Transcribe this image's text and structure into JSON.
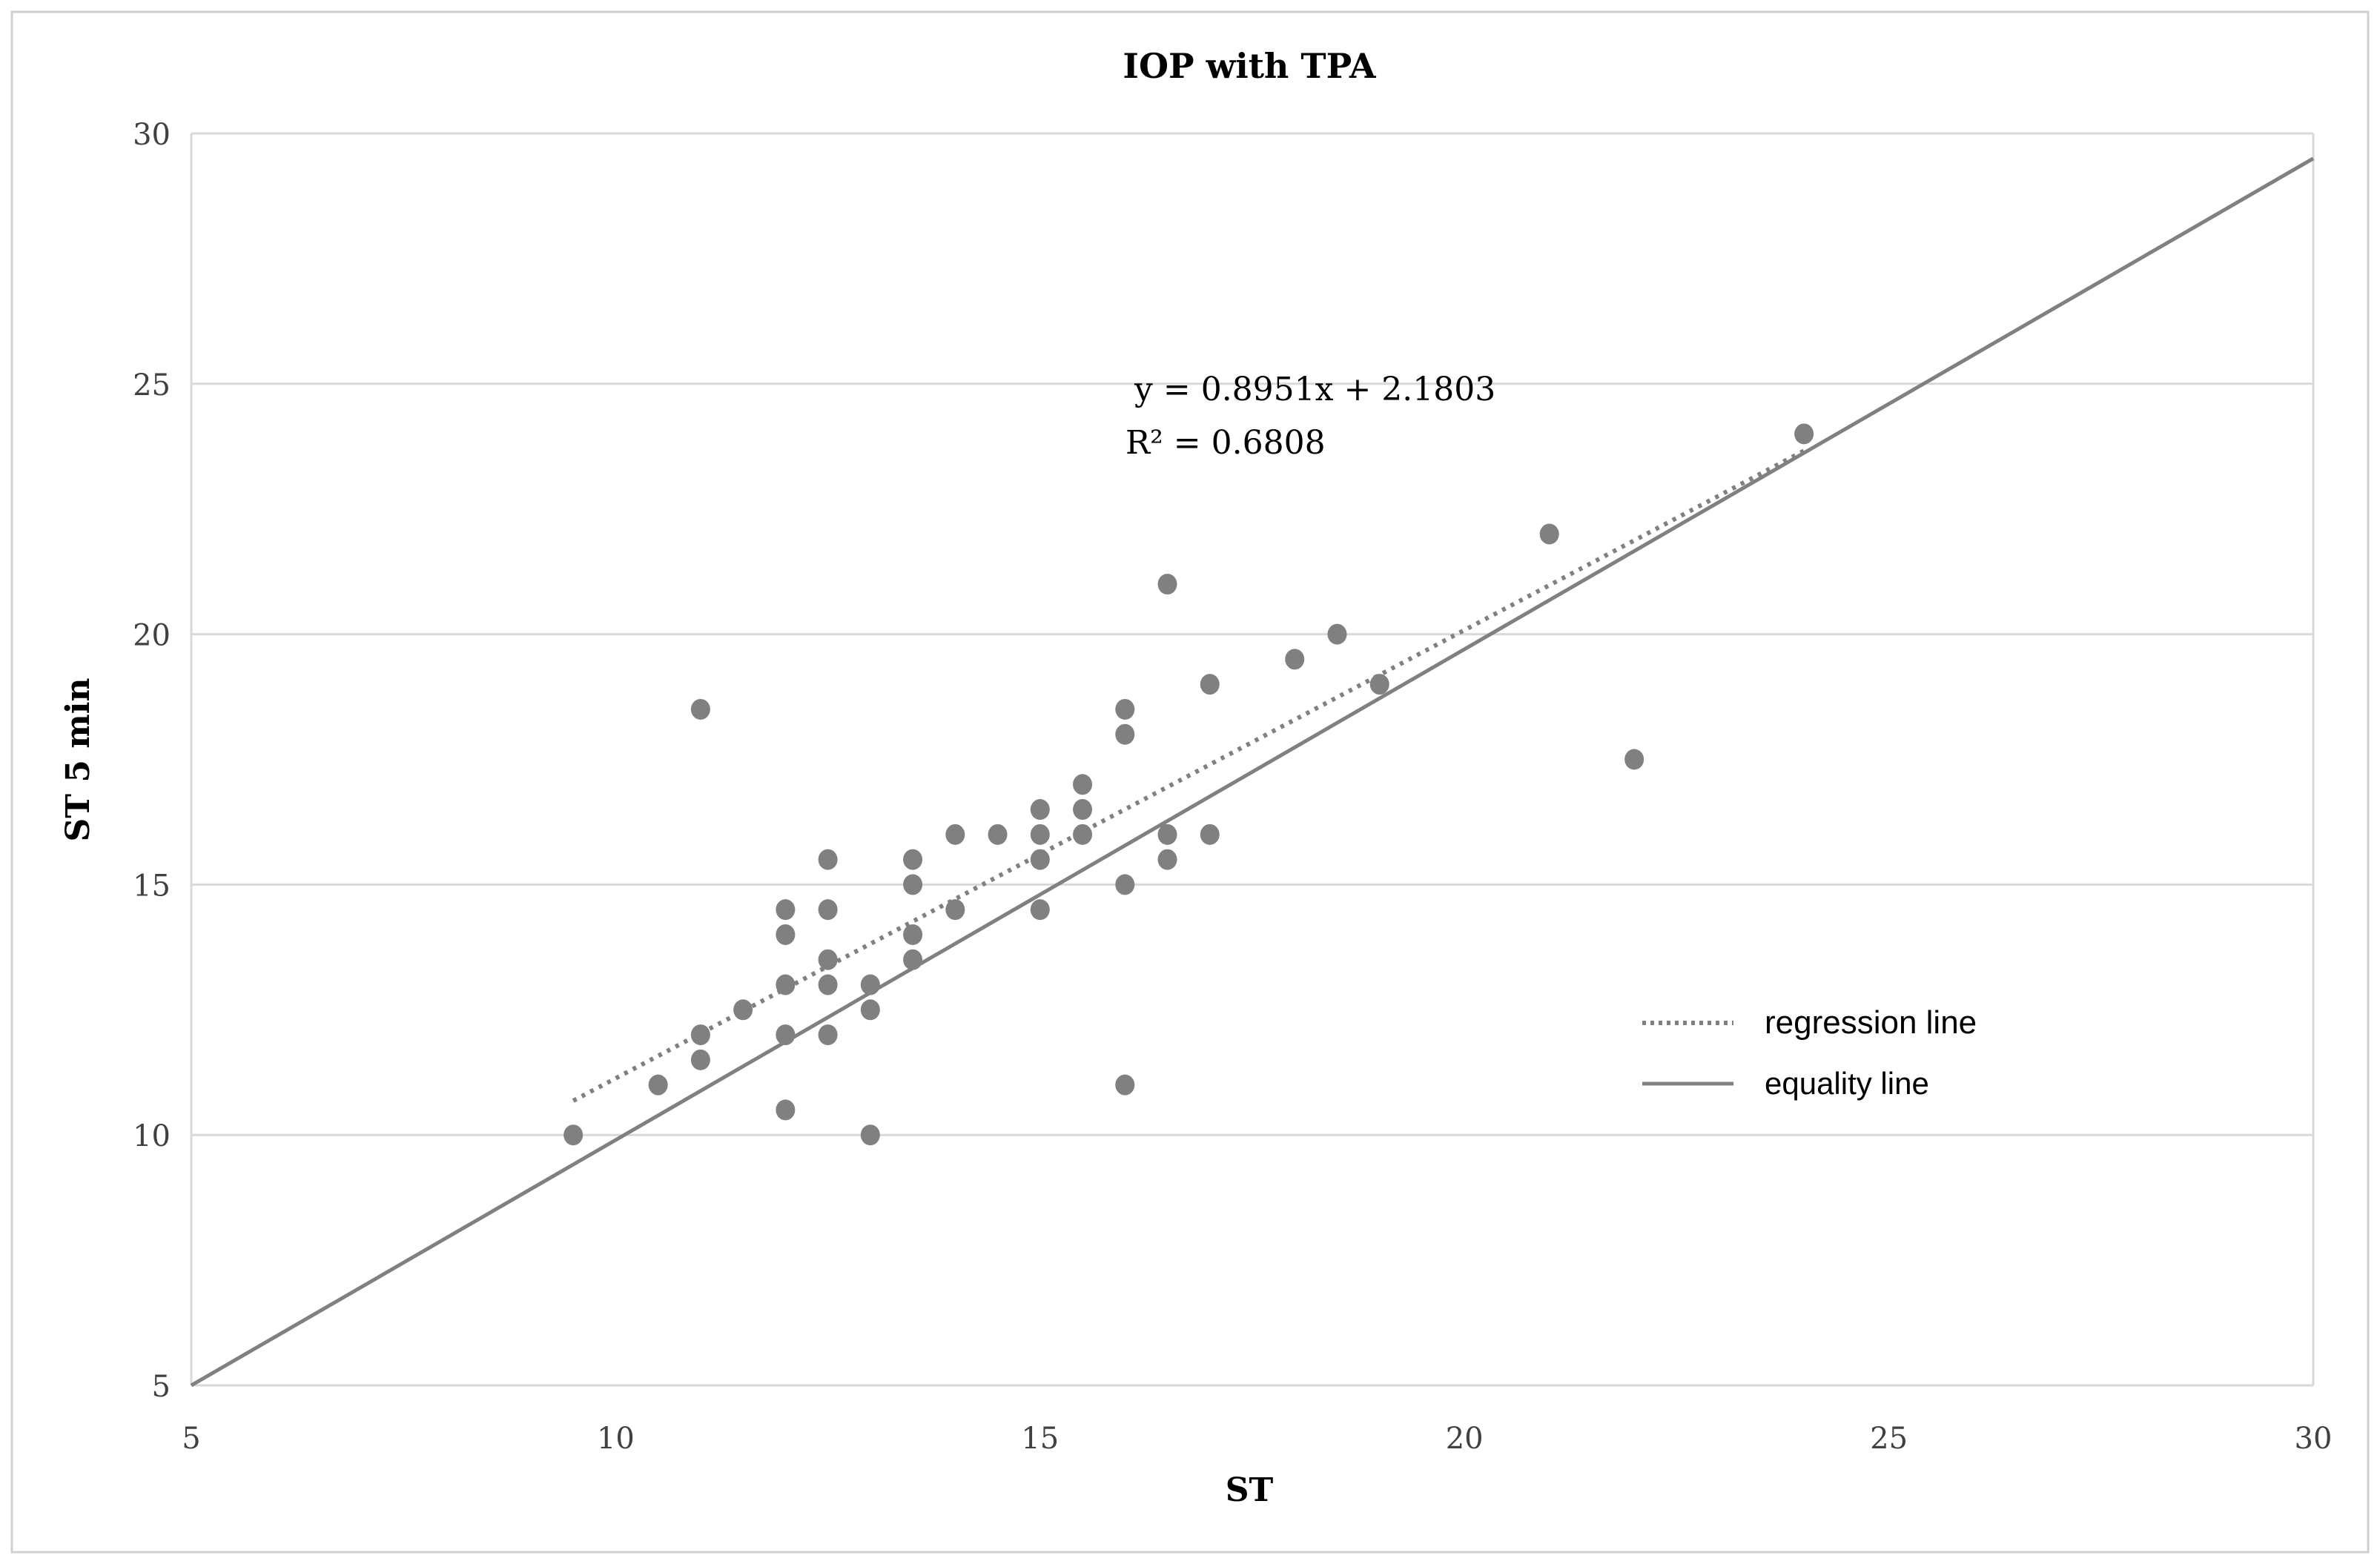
{
  "chart_data": {
    "type": "scatter",
    "title": "IOP with TPA",
    "xlabel": "ST",
    "ylabel": "ST 5 min",
    "xlim": [
      5,
      30
    ],
    "ylim": [
      5,
      30
    ],
    "xticks": [
      5,
      10,
      15,
      20,
      25,
      30
    ],
    "yticks": [
      5,
      10,
      15,
      20,
      25,
      30
    ],
    "grid": "horizontal",
    "legend_position": "right",
    "marker_color": "#808080",
    "points": [
      [
        9.5,
        10
      ],
      [
        10.5,
        11
      ],
      [
        11,
        18.5
      ],
      [
        11,
        12
      ],
      [
        11,
        11.5
      ],
      [
        11.5,
        12.5
      ],
      [
        12,
        14.5
      ],
      [
        12,
        14
      ],
      [
        12,
        13
      ],
      [
        12,
        12
      ],
      [
        12,
        10.5
      ],
      [
        12.5,
        15.5
      ],
      [
        12.5,
        14.5
      ],
      [
        12.5,
        13.5
      ],
      [
        12.5,
        13
      ],
      [
        12.5,
        12
      ],
      [
        13,
        13
      ],
      [
        13,
        12.5
      ],
      [
        13,
        10
      ],
      [
        13.5,
        15.5
      ],
      [
        13.5,
        15
      ],
      [
        13.5,
        14
      ],
      [
        13.5,
        13.5
      ],
      [
        14,
        16
      ],
      [
        14,
        14.5
      ],
      [
        14.5,
        16
      ],
      [
        15,
        16.5
      ],
      [
        15,
        16
      ],
      [
        15,
        15.5
      ],
      [
        15,
        14.5
      ],
      [
        15.5,
        17
      ],
      [
        15.5,
        16.5
      ],
      [
        15.5,
        16
      ],
      [
        16,
        18.5
      ],
      [
        16,
        18
      ],
      [
        16,
        15
      ],
      [
        16,
        11
      ],
      [
        16.5,
        21
      ],
      [
        16.5,
        16
      ],
      [
        16.5,
        15.5
      ],
      [
        17,
        19
      ],
      [
        17,
        16
      ],
      [
        18,
        19.5
      ],
      [
        18.5,
        20
      ],
      [
        19,
        19
      ],
      [
        21,
        22
      ],
      [
        22,
        17.5
      ],
      [
        24,
        24
      ]
    ],
    "regression": {
      "name": "regression line",
      "slope": 0.8951,
      "intercept": 2.1803,
      "x_range": [
        9.5,
        24
      ],
      "equation": "y = 0.8951x + 2.1803",
      "r2": "R² = 0.6808"
    },
    "equality": {
      "name": "equality line",
      "from": [
        5,
        5
      ],
      "to": [
        30,
        29.5
      ]
    },
    "legend": [
      "regression line",
      "equality line"
    ]
  }
}
